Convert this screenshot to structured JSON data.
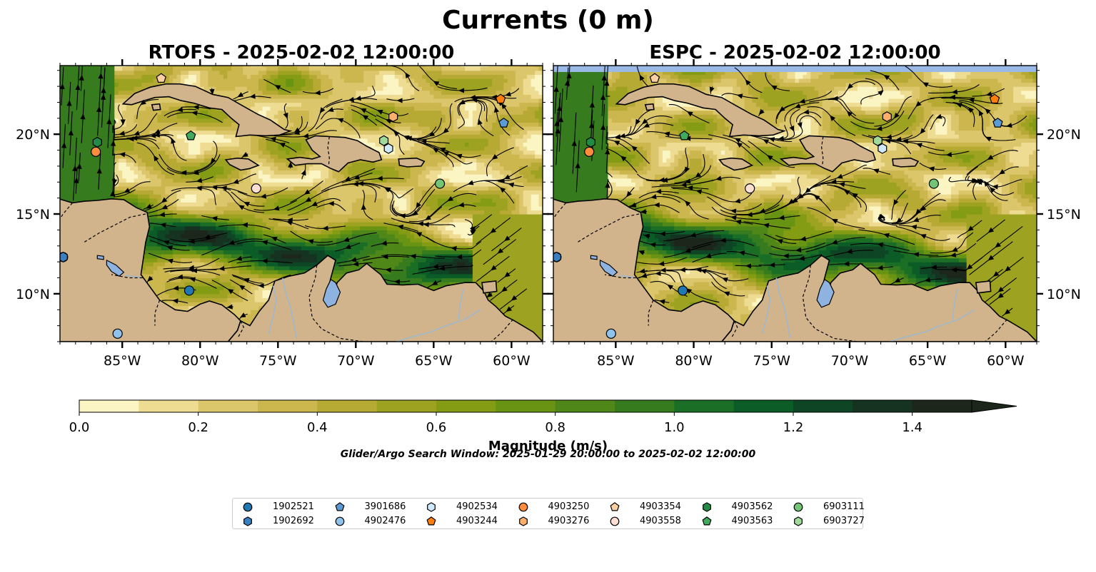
{
  "figure": {
    "title": "Currents (0 m)",
    "colorbar_label": "Magnitude (m/s)",
    "search_window": "Glider/Argo Search Window: 2025-01-29 20:00:00 to 2025-02-02 12:00:00"
  },
  "panels": [
    {
      "title": "RTOFS - 2025-02-02 12:00:00",
      "model": "RTOFS"
    },
    {
      "title": "ESPC - 2025-02-02 12:00:00",
      "model": "ESPC"
    }
  ],
  "colors": {
    "land": "#d2b48c",
    "lakes": "#8fb3e0",
    "rivers": "#9fb8cc",
    "coastline": "#000000",
    "streamlines": "#000000",
    "espc_missing_band": "#9ab9e6"
  },
  "colorbar": {
    "min": 0.0,
    "max": 1.5,
    "step": 0.1,
    "extend": "max",
    "ticks": [
      "0.0",
      "0.2",
      "0.4",
      "0.6",
      "0.8",
      "1.0",
      "1.2",
      "1.4"
    ],
    "tick_values": [
      0.0,
      0.2,
      0.4,
      0.6,
      0.8,
      1.0,
      1.2,
      1.4
    ],
    "colors": [
      "#fbf5c3",
      "#eedc92",
      "#dcc66c",
      "#ccb74f",
      "#b7aa34",
      "#9da320",
      "#849c14",
      "#689313",
      "#4f8718",
      "#367c1f",
      "#1b6e25",
      "#0b5c27",
      "#0e4524",
      "#163322",
      "#1c261b"
    ]
  },
  "map_extent": {
    "lon": [
      -89,
      -58
    ],
    "lat": [
      7,
      24.3
    ]
  },
  "axes": {
    "lon_ticks": [
      {
        "value": -85,
        "label": "85°W"
      },
      {
        "value": -80,
        "label": "80°W"
      },
      {
        "value": -75,
        "label": "75°W"
      },
      {
        "value": -70,
        "label": "70°W"
      },
      {
        "value": -65,
        "label": "65°W"
      },
      {
        "value": -60,
        "label": "60°W"
      }
    ],
    "lat_ticks": [
      {
        "value": 10,
        "label": "10°N"
      },
      {
        "value": 15,
        "label": "15°N"
      },
      {
        "value": 20,
        "label": "20°N"
      }
    ]
  },
  "floats": [
    {
      "id": "1902521",
      "marker": "circle",
      "color": "#1f77b4",
      "lon": -88.8,
      "lat": 12.3
    },
    {
      "id": "1902692",
      "marker": "hexagon",
      "color": "#3a7fc0",
      "lon": -88.8,
      "lat": 12.3
    },
    {
      "id": "3901686",
      "marker": "pentagon",
      "color": "#5b9bd5",
      "lon": -60.5,
      "lat": 20.7
    },
    {
      "id": "4902476",
      "marker": "circle",
      "color": "#8fc2ec",
      "lon": -85.3,
      "lat": 7.5
    },
    {
      "id": "4902534",
      "marker": "hexagon",
      "color": "#cfe8fb",
      "lon": -67.9,
      "lat": 19.1
    },
    {
      "id": "4903244",
      "marker": "pentagon",
      "color": "#ff7f0e",
      "lon": -60.7,
      "lat": 22.2
    },
    {
      "id": "4903250",
      "marker": "circle",
      "color": "#fd8d3c",
      "lon": -86.7,
      "lat": 18.9
    },
    {
      "id": "4903276",
      "marker": "hexagon",
      "color": "#fdae6b",
      "lon": -67.6,
      "lat": 21.1
    },
    {
      "id": "4903354",
      "marker": "pentagon",
      "color": "#fdd0a2",
      "lon": -82.5,
      "lat": 23.5
    },
    {
      "id": "4903558",
      "marker": "circle",
      "color": "#fee0d2",
      "lon": -76.4,
      "lat": 16.6
    },
    {
      "id": "4903562",
      "marker": "hexagon",
      "color": "#238b45",
      "lon": -86.6,
      "lat": 19.5
    },
    {
      "id": "4903563",
      "marker": "pentagon",
      "color": "#41ab5d",
      "lon": -80.6,
      "lat": 19.9
    },
    {
      "id": "6903111",
      "marker": "circle",
      "color": "#74c476",
      "lon": -64.6,
      "lat": 16.9
    },
    {
      "id": "6903727",
      "marker": "hexagon",
      "color": "#a1d99b",
      "lon": -68.2,
      "lat": 19.6
    },
    {
      "id": "1902521-b",
      "marker": "circle",
      "color": "#1f77b4",
      "lon": -80.7,
      "lat": 10.2,
      "hidden_in_legend": true
    }
  ]
}
